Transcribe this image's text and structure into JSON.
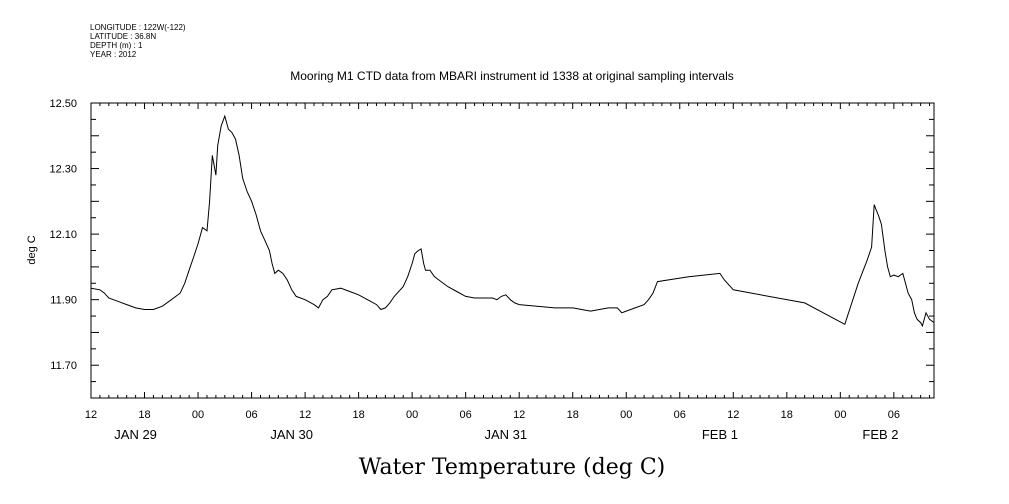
{
  "header": {
    "meta_lines": [
      "LONGITUDE : 122W(-122)",
      "LATITUDE : 36.8N",
      "DEPTH (m) : 1",
      "YEAR : 2012"
    ]
  },
  "chart_data": {
    "type": "line",
    "title": "Mooring M1 CTD data from MBARI instrument id 1338 at original sampling intervals",
    "xlabel": "Water Temperature (deg C)",
    "ylabel": "deg C",
    "x_unit": "hours since JAN 29 12:00 (2012)",
    "xlim": [
      0,
      94.5
    ],
    "ylim": [
      11.6,
      12.5
    ],
    "y_ticks": [
      {
        "value": 12.5,
        "label": "12.50"
      },
      {
        "value": 12.3,
        "label": "12.30"
      },
      {
        "value": 12.1,
        "label": "12.10"
      },
      {
        "value": 11.9,
        "label": "11.90"
      },
      {
        "value": 11.7,
        "label": "11.70"
      }
    ],
    "x_ticks": [
      {
        "value": 0,
        "label": "12"
      },
      {
        "value": 6,
        "label": "18"
      },
      {
        "value": 12,
        "label": "00"
      },
      {
        "value": 18,
        "label": "06"
      },
      {
        "value": 24,
        "label": "12"
      },
      {
        "value": 30,
        "label": "18"
      },
      {
        "value": 36,
        "label": "00"
      },
      {
        "value": 42,
        "label": "06"
      },
      {
        "value": 48,
        "label": "12"
      },
      {
        "value": 54,
        "label": "18"
      },
      {
        "value": 60,
        "label": "00"
      },
      {
        "value": 66,
        "label": "06"
      },
      {
        "value": 72,
        "label": "12"
      },
      {
        "value": 78,
        "label": "18"
      },
      {
        "value": 84,
        "label": "00"
      },
      {
        "value": 90,
        "label": "06"
      }
    ],
    "day_labels": [
      {
        "value": 5,
        "label": "JAN 29"
      },
      {
        "value": 22.5,
        "label": "JAN 30"
      },
      {
        "value": 46.5,
        "label": "JAN 31"
      },
      {
        "value": 70.5,
        "label": "FEB  1"
      },
      {
        "value": 88.5,
        "label": "FEB  2"
      }
    ],
    "series": [
      {
        "color": "#000000",
        "points": [
          [
            0,
            11.935
          ],
          [
            1,
            11.93
          ],
          [
            1.5,
            11.92
          ],
          [
            2,
            11.905
          ],
          [
            3,
            11.895
          ],
          [
            4,
            11.885
          ],
          [
            5,
            11.875
          ],
          [
            6,
            11.87
          ],
          [
            7,
            11.87
          ],
          [
            8,
            11.88
          ],
          [
            9,
            11.9
          ],
          [
            10,
            11.92
          ],
          [
            10.5,
            11.95
          ],
          [
            11,
            11.99
          ],
          [
            11.5,
            12.03
          ],
          [
            12,
            12.07
          ],
          [
            12.5,
            12.12
          ],
          [
            13,
            12.11
          ],
          [
            13.3,
            12.2
          ],
          [
            13.6,
            12.34
          ],
          [
            14,
            12.28
          ],
          [
            14.2,
            12.37
          ],
          [
            14.6,
            12.43
          ],
          [
            15,
            12.46
          ],
          [
            15.4,
            12.42
          ],
          [
            15.8,
            12.41
          ],
          [
            16.2,
            12.39
          ],
          [
            16.6,
            12.34
          ],
          [
            17,
            12.27
          ],
          [
            17.5,
            12.23
          ],
          [
            18,
            12.2
          ],
          [
            18.5,
            12.16
          ],
          [
            19,
            12.11
          ],
          [
            19.5,
            12.08
          ],
          [
            20,
            12.05
          ],
          [
            20.3,
            12.01
          ],
          [
            20.6,
            11.98
          ],
          [
            21,
            11.99
          ],
          [
            21.5,
            11.98
          ],
          [
            22,
            11.96
          ],
          [
            22.5,
            11.93
          ],
          [
            23,
            11.91
          ],
          [
            24,
            11.9
          ],
          [
            25,
            11.885
          ],
          [
            25.5,
            11.875
          ],
          [
            26,
            11.9
          ],
          [
            26.5,
            11.91
          ],
          [
            27,
            11.93
          ],
          [
            28,
            11.935
          ],
          [
            29,
            11.925
          ],
          [
            30,
            11.915
          ],
          [
            31,
            11.9
          ],
          [
            32,
            11.885
          ],
          [
            32.5,
            11.87
          ],
          [
            33,
            11.875
          ],
          [
            33.5,
            11.89
          ],
          [
            34,
            11.91
          ],
          [
            35,
            11.94
          ],
          [
            35.5,
            11.97
          ],
          [
            36,
            12.01
          ],
          [
            36.3,
            12.04
          ],
          [
            36.7,
            12.05
          ],
          [
            37,
            12.055
          ],
          [
            37.3,
            12.01
          ],
          [
            37.5,
            11.99
          ],
          [
            38,
            11.99
          ],
          [
            38.5,
            11.97
          ],
          [
            39,
            11.96
          ],
          [
            40,
            11.94
          ],
          [
            41,
            11.925
          ],
          [
            42,
            11.91
          ],
          [
            43,
            11.905
          ],
          [
            44,
            11.905
          ],
          [
            45,
            11.905
          ],
          [
            45.5,
            11.9
          ],
          [
            46,
            11.91
          ],
          [
            46.5,
            11.915
          ],
          [
            47,
            11.9
          ],
          [
            47.5,
            11.89
          ],
          [
            48,
            11.885
          ],
          [
            50,
            11.88
          ],
          [
            52,
            11.875
          ],
          [
            54,
            11.875
          ],
          [
            55,
            11.87
          ],
          [
            56,
            11.865
          ],
          [
            57,
            11.87
          ],
          [
            58,
            11.875
          ],
          [
            59,
            11.875
          ],
          [
            59.5,
            11.86
          ],
          [
            60,
            11.865
          ],
          [
            61,
            11.875
          ],
          [
            62,
            11.885
          ],
          [
            62.5,
            11.9
          ],
          [
            63,
            11.92
          ],
          [
            63.5,
            11.955
          ],
          [
            67,
            11.97
          ],
          [
            70.5,
            11.98
          ],
          [
            71,
            11.96
          ],
          [
            72,
            11.93
          ],
          [
            79,
            11.895
          ],
          [
            80,
            11.89
          ],
          [
            84.5,
            11.825
          ],
          [
            86,
            11.95
          ],
          [
            87,
            12.02
          ],
          [
            87.5,
            12.06
          ],
          [
            87.8,
            12.19
          ],
          [
            88,
            12.175
          ],
          [
            88.3,
            12.155
          ],
          [
            88.6,
            12.13
          ],
          [
            89,
            12.05
          ],
          [
            89.3,
            12.0
          ],
          [
            89.6,
            11.97
          ],
          [
            90,
            11.975
          ],
          [
            90.5,
            11.97
          ],
          [
            91,
            11.98
          ],
          [
            91.3,
            11.95
          ],
          [
            91.6,
            11.92
          ],
          [
            92,
            11.9
          ],
          [
            92.3,
            11.86
          ],
          [
            92.6,
            11.84
          ],
          [
            93,
            11.83
          ],
          [
            93.2,
            11.82
          ],
          [
            93.6,
            11.86
          ],
          [
            94,
            11.84
          ],
          [
            94.5,
            11.83
          ]
        ]
      }
    ]
  }
}
